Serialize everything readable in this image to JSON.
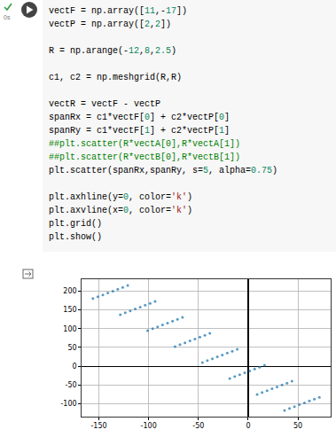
{
  "cell": {
    "status": "0s",
    "code": [
      "vectF = np.array([11,-17])",
      "vectP = np.array([2,2])",
      "",
      "R = np.arange(-12,8,2.5)",
      "",
      "c1, c2 = np.meshgrid(R,R)",
      "",
      "vectR = vectF - vectP",
      "spanRx = c1*vectF[0] + c2*vectP[0]",
      "spanRy = c1*vectF[1] + c2*vectP[1]",
      "##plt.scatter(R*vectA[0],R*vectA[1])",
      "##plt.scatter(R*vectB[0],R*vectB[1])",
      "plt.scatter(spanRx,spanRy, s=5, alpha=0.75)",
      "",
      "plt.axhline(y=0, color='k')",
      "plt.axvline(x=0, color='k')",
      "plt.grid()",
      "plt.show()"
    ]
  },
  "chart_data": {
    "type": "scatter",
    "color": "#1f77b4",
    "marker": "circle",
    "grid": true,
    "x": [
      -156,
      -151,
      -146,
      -141,
      -136,
      -131,
      -126,
      -121,
      -128.5,
      -123.5,
      -118.5,
      -113.5,
      -108.5,
      -103.5,
      -98.5,
      -93.5,
      -101,
      -96,
      -91,
      -86,
      -81,
      -76,
      -71,
      -66,
      -73.5,
      -68.5,
      -63.5,
      -58.5,
      -53.5,
      -48.5,
      -43.5,
      -38.5,
      -46,
      -41,
      -36,
      -31,
      -26,
      -21,
      -16,
      -11,
      -18.5,
      -13.5,
      -8.5,
      -3.5,
      1.5,
      6.5,
      11.5,
      16.5,
      9,
      14,
      19,
      24,
      29,
      34,
      39,
      44,
      36.5,
      41.5,
      46.5,
      51.5,
      56.5,
      61.5,
      66.5,
      71.5
    ],
    "y": [
      180,
      185,
      190,
      195,
      200,
      205,
      210,
      215,
      137.5,
      142.5,
      147.5,
      152.5,
      157.5,
      162.5,
      167.5,
      172.5,
      95,
      100,
      105,
      110,
      115,
      120,
      125,
      130,
      52.5,
      57.5,
      62.5,
      67.5,
      72.5,
      77.5,
      82.5,
      87.5,
      10,
      15,
      20,
      25,
      30,
      35,
      40,
      45,
      -32.5,
      -27.5,
      -22.5,
      -17.5,
      -12.5,
      -7.5,
      -2.5,
      2.5,
      -75,
      -70,
      -65,
      -60,
      -55,
      -50,
      -45,
      -40,
      -117.5,
      -112.5,
      -107.5,
      -102.5,
      -97.5,
      -92.5,
      -87.5,
      -82.5
    ],
    "xlim": [
      -167.4,
      82.9
    ],
    "ylim": [
      -134.1,
      231.6
    ],
    "xticks": [
      -150,
      -100,
      -50,
      0,
      50
    ],
    "yticks": [
      -100,
      -50,
      0,
      50,
      100,
      150,
      200
    ]
  }
}
